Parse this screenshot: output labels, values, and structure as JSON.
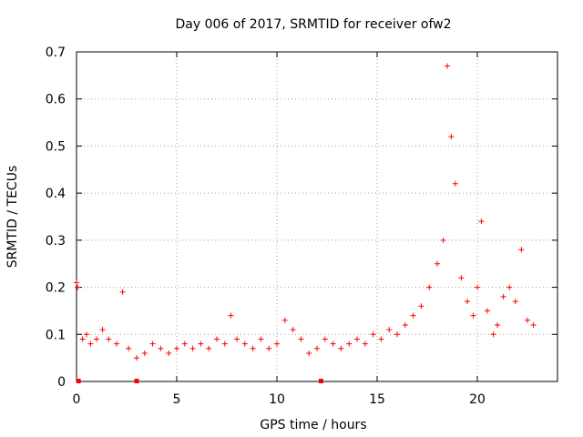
{
  "chart_data": {
    "type": "scatter",
    "title": "Day 006 of 2017, SRMTID for receiver ofw2",
    "xlabel": "GPS time / hours",
    "ylabel": "SRMTID / TECUs",
    "xlim": [
      0,
      24
    ],
    "ylim": [
      0,
      0.7
    ],
    "x_ticks": [
      0,
      5,
      10,
      15,
      20
    ],
    "y_ticks": [
      0,
      0.1,
      0.2,
      0.3,
      0.4,
      0.5,
      0.6,
      0.7
    ],
    "x_tick_labels": [
      "0",
      "5",
      "10",
      "15",
      "20"
    ],
    "y_tick_labels": [
      "0",
      "0.1",
      "0.2",
      "0.3",
      "0.4",
      "0.5",
      "0.6",
      "0.7"
    ],
    "grid": true,
    "marker": "+",
    "color": "#ff0000",
    "gap_markers_x": [
      0.1,
      3.0,
      12.2
    ],
    "series": [
      {
        "name": "SRMTID",
        "x": [
          0.0,
          0.05,
          0.3,
          0.5,
          0.7,
          1.0,
          1.3,
          1.6,
          2.0,
          2.3,
          2.6,
          3.0,
          3.4,
          3.8,
          4.2,
          4.6,
          5.0,
          5.4,
          5.8,
          6.2,
          6.6,
          7.0,
          7.4,
          7.7,
          8.0,
          8.4,
          8.8,
          9.2,
          9.6,
          10.0,
          10.4,
          10.8,
          11.2,
          11.6,
          12.0,
          12.4,
          12.8,
          13.2,
          13.6,
          14.0,
          14.4,
          14.8,
          15.2,
          15.6,
          16.0,
          16.4,
          16.8,
          17.2,
          17.6,
          18.0,
          18.3,
          18.5,
          18.7,
          18.9,
          19.2,
          19.5,
          19.8,
          20.0,
          20.2,
          20.5,
          20.8,
          21.0,
          21.3,
          21.6,
          21.9,
          22.2,
          22.5,
          22.8
        ],
        "y": [
          0.21,
          0.2,
          0.09,
          0.1,
          0.08,
          0.09,
          0.11,
          0.09,
          0.08,
          0.19,
          0.07,
          0.05,
          0.06,
          0.08,
          0.07,
          0.06,
          0.07,
          0.08,
          0.07,
          0.08,
          0.07,
          0.09,
          0.08,
          0.14,
          0.09,
          0.08,
          0.07,
          0.09,
          0.07,
          0.08,
          0.13,
          0.11,
          0.09,
          0.06,
          0.07,
          0.09,
          0.08,
          0.07,
          0.08,
          0.09,
          0.08,
          0.1,
          0.09,
          0.11,
          0.1,
          0.12,
          0.14,
          0.16,
          0.2,
          0.25,
          0.3,
          0.67,
          0.52,
          0.42,
          0.22,
          0.17,
          0.14,
          0.2,
          0.34,
          0.15,
          0.1,
          0.12,
          0.18,
          0.2,
          0.17,
          0.28,
          0.13,
          0.12
        ]
      }
    ]
  }
}
